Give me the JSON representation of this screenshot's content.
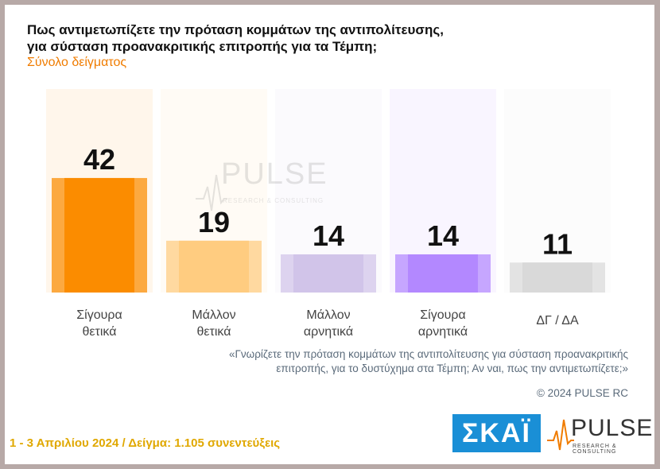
{
  "header": {
    "title_line1": "Πως αντιμετωπίζετε την πρόταση κομμάτων της αντιπολίτευσης,",
    "title_line2": "για σύσταση προανακριτικής επιτροπής για τα Τέμπη;",
    "subtitle": "Σύνολο δείγματος"
  },
  "chart_data": {
    "type": "bar",
    "categories": [
      [
        "Σίγουρα",
        "θετικά"
      ],
      [
        "Μάλλον",
        "θετικά"
      ],
      [
        "Μάλλον",
        "αρνητικά"
      ],
      [
        "Σίγουρα",
        "αρνητικά"
      ],
      [
        "ΔΓ / ΔΑ"
      ]
    ],
    "values": [
      42,
      19,
      14,
      14,
      11
    ],
    "colors": [
      "#fb8c00",
      "#ffcc80",
      "#d1c4e9",
      "#b388ff",
      "#d9d9d9"
    ],
    "ylim": [
      0,
      50
    ],
    "grid": false,
    "legend": "none"
  },
  "note": {
    "line1": "«Γνωρίζετε την πρόταση κομμάτων της αντιπολίτευσης για σύσταση προανακριτικής",
    "line2": "επιτροπής, για το δυστύχημα στα Τέμπη; Αν ναι, πως την αντιμετωπίζετε;»"
  },
  "copyright": "© 2024 PULSE RC",
  "footer": "1 - 3  Απριλίου 2024  /  Δείγμα:  1.105 συνεντεύξεις",
  "logos": {
    "skai": "ΣΚΑΪ",
    "pulse": "PULSE",
    "pulse_sub": "RESEARCH & CONSULTING"
  }
}
